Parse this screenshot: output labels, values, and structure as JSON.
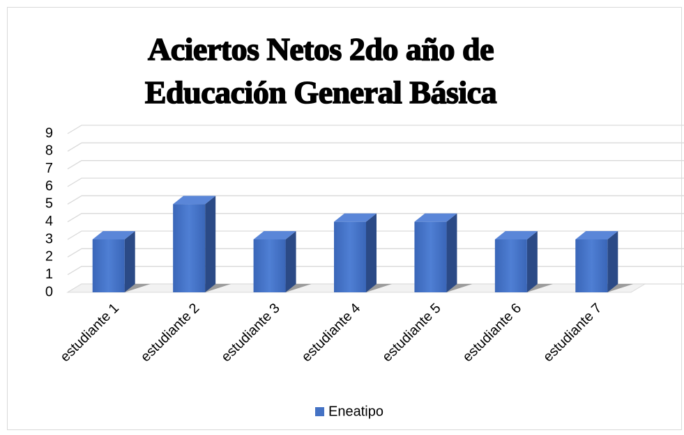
{
  "chart_data": {
    "type": "bar3d",
    "title": "Aciertos Netos 2do año de Educación General Básica",
    "categories": [
      "estudiante 1",
      "estudiante 2",
      "estudiante 3",
      "estudiante 4",
      "estudiante 5",
      "estudiante 6",
      "estudiante 7"
    ],
    "series": [
      {
        "name": "Eneatipo",
        "color": "#4472c4",
        "values": [
          3,
          5,
          3,
          4,
          4,
          3,
          3
        ]
      }
    ],
    "ylim": [
      0,
      9
    ],
    "yticks": [
      0,
      1,
      2,
      3,
      4,
      5,
      6,
      7,
      8,
      9
    ],
    "grid": true,
    "legend": "bottom"
  }
}
